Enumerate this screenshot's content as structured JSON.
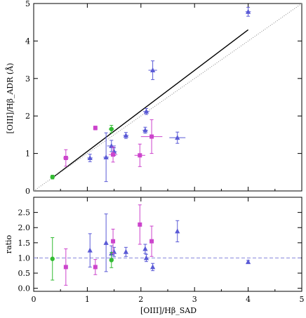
{
  "chart_data": [
    {
      "type": "scatter",
      "title": "",
      "xlabel": "",
      "ylabel": "[OIII]/Hβ_ADR (Å)",
      "xlim": [
        0,
        5
      ],
      "ylim": [
        0,
        5
      ],
      "x_tick_labels": [
        "0",
        "1",
        "2",
        "3",
        "4",
        "5"
      ],
      "y_tick_labels": [
        "0",
        "1",
        "2",
        "3",
        "4",
        "5"
      ],
      "grid": false,
      "series": [
        {
          "marker": "triangle",
          "color": "#5a5ad6",
          "points": [
            {
              "x": 1.05,
              "y": 0.88,
              "xerr": 0.05,
              "yerr": 0.1
            },
            {
              "x": 1.35,
              "y": 0.9,
              "xerr": 0.05,
              "yerr": 0.65
            },
            {
              "x": 1.45,
              "y": 1.2,
              "xerr": 0.08,
              "yerr": 0.15
            },
            {
              "x": 1.5,
              "y": 1.05,
              "xerr": 0.05,
              "yerr": 0.1
            },
            {
              "x": 1.72,
              "y": 1.48,
              "xerr": 0.05,
              "yerr": 0.08
            },
            {
              "x": 2.08,
              "y": 1.62,
              "xerr": 0.05,
              "yerr": 0.08
            },
            {
              "x": 2.1,
              "y": 2.12,
              "xerr": 0.06,
              "yerr": 0.08
            },
            {
              "x": 2.22,
              "y": 3.22,
              "xerr": 0.08,
              "yerr": 0.25
            },
            {
              "x": 2.68,
              "y": 1.42,
              "xerr": 0.15,
              "yerr": 0.15
            },
            {
              "x": 4.0,
              "y": 4.78,
              "xerr": 0.05,
              "yerr": 0.12
            }
          ]
        },
        {
          "marker": "square",
          "color": "#cc44cc",
          "points": [
            {
              "x": 0.6,
              "y": 0.88,
              "xerr": 0.05,
              "yerr": 0.22
            },
            {
              "x": 1.15,
              "y": 1.68,
              "xerr": 0.03,
              "yerr": 0.05
            },
            {
              "x": 1.48,
              "y": 0.97,
              "xerr": 0.08,
              "yerr": 0.2
            },
            {
              "x": 1.98,
              "y": 0.95,
              "xerr": 0.1,
              "yerr": 0.3
            },
            {
              "x": 2.2,
              "y": 1.45,
              "xerr": 0.2,
              "yerr": 0.45
            }
          ]
        },
        {
          "marker": "circle",
          "color": "#33bb33",
          "points": [
            {
              "x": 0.35,
              "y": 0.37,
              "xerr": 0.0,
              "yerr": 0.05
            },
            {
              "x": 1.45,
              "y": 1.65,
              "xerr": 0.05,
              "yerr": 0.1
            }
          ]
        }
      ],
      "lines": [
        {
          "style": "solid",
          "color": "#000000",
          "from": [
            0.35,
            0.35
          ],
          "to": [
            4.0,
            4.3
          ]
        },
        {
          "style": "dotted",
          "color": "#888888",
          "from": [
            0,
            0
          ],
          "to": [
            5,
            5
          ]
        }
      ]
    },
    {
      "type": "scatter",
      "title": "",
      "xlabel": "[OIII]/Hβ_SAD",
      "ylabel": "ratio",
      "xlim": [
        0,
        5
      ],
      "ylim": [
        -0.1,
        3.0
      ],
      "x_tick_labels": [
        "0",
        "1",
        "2",
        "3",
        "4",
        "5"
      ],
      "y_tick_labels": [
        "0.0",
        "0.5",
        "1.0",
        "1.5",
        "2.0",
        "2.5"
      ],
      "grid": false,
      "reference_line": {
        "y": 1.0,
        "style": "dashed",
        "color": "#8888dd"
      },
      "series": [
        {
          "marker": "triangle",
          "color": "#5a5ad6",
          "points": [
            {
              "x": 1.05,
              "y": 1.25,
              "yerr": 0.55
            },
            {
              "x": 1.35,
              "y": 1.5,
              "yerr": 0.95
            },
            {
              "x": 1.45,
              "y": 1.15,
              "yerr": 0.25
            },
            {
              "x": 1.5,
              "y": 1.2,
              "yerr": 0.15
            },
            {
              "x": 1.72,
              "y": 1.2,
              "yerr": 0.15
            },
            {
              "x": 2.08,
              "y": 1.3,
              "yerr": 0.15
            },
            {
              "x": 2.1,
              "y": 1.0,
              "yerr": 0.12
            },
            {
              "x": 2.22,
              "y": 0.7,
              "yerr": 0.12
            },
            {
              "x": 2.68,
              "y": 1.88,
              "yerr": 0.35
            },
            {
              "x": 4.0,
              "y": 0.87,
              "yerr": 0.05
            }
          ]
        },
        {
          "marker": "square",
          "color": "#cc44cc",
          "points": [
            {
              "x": 0.6,
              "y": 0.7,
              "yerr": 0.6
            },
            {
              "x": 1.15,
              "y": 0.7,
              "yerr": 0.25
            },
            {
              "x": 1.48,
              "y": 1.55,
              "yerr": 0.4
            },
            {
              "x": 1.98,
              "y": 2.1,
              "yerr": 0.65
            },
            {
              "x": 2.2,
              "y": 1.55,
              "yerr": 0.5
            }
          ]
        },
        {
          "marker": "circle",
          "color": "#33bb33",
          "points": [
            {
              "x": 0.35,
              "y": 0.97,
              "yerr": 0.7
            },
            {
              "x": 1.45,
              "y": 0.93,
              "yerr": 0.25
            }
          ]
        }
      ]
    }
  ]
}
